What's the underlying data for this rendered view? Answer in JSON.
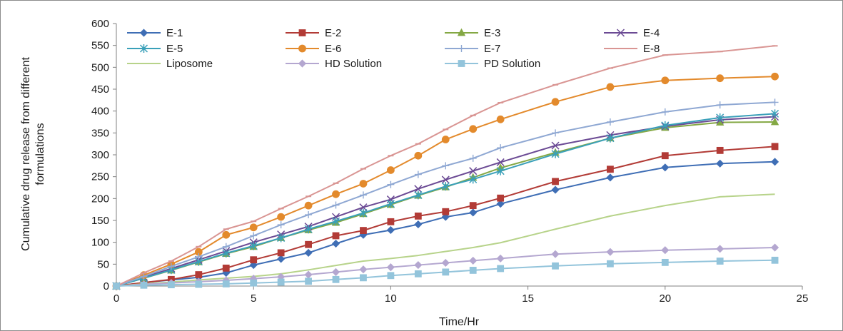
{
  "chart_data": {
    "type": "line",
    "title": "",
    "xlabel": "Time/Hr",
    "ylabel_lines": [
      "Cumulative drug release from different",
      "formulations"
    ],
    "xlim": [
      0,
      25
    ],
    "ylim": [
      0,
      600
    ],
    "xticks": [
      0,
      5,
      10,
      15,
      20,
      25
    ],
    "yticks": [
      0,
      50,
      100,
      150,
      200,
      250,
      300,
      350,
      400,
      450,
      500,
      550,
      600
    ],
    "grid": false,
    "legend_position": "top",
    "x": [
      0,
      1,
      2,
      3,
      4,
      5,
      6,
      7,
      8,
      9,
      10,
      11,
      12,
      13,
      14,
      16,
      18,
      20,
      22,
      24
    ],
    "series": [
      {
        "name": "E-1",
        "color": "#3f6eb5",
        "marker": "diamond",
        "values": [
          0,
          8,
          14,
          20,
          30,
          48,
          62,
          76,
          97,
          117,
          128,
          141,
          158,
          168,
          188,
          220,
          248,
          271,
          280,
          284
        ]
      },
      {
        "name": "E-2",
        "color": "#b23b36",
        "marker": "square",
        "values": [
          0,
          8,
          15,
          26,
          41,
          60,
          76,
          95,
          115,
          127,
          147,
          160,
          170,
          184,
          201,
          239,
          267,
          298,
          310,
          319
        ]
      },
      {
        "name": "E-3",
        "color": "#84a844",
        "marker": "triangle",
        "values": [
          0,
          18,
          36,
          55,
          74,
          90,
          110,
          128,
          145,
          165,
          186,
          207,
          226,
          248,
          270,
          305,
          338,
          362,
          374,
          375
        ]
      },
      {
        "name": "E-4",
        "color": "#6b4a94",
        "marker": "x",
        "values": [
          0,
          20,
          40,
          60,
          80,
          100,
          118,
          136,
          158,
          180,
          198,
          222,
          243,
          263,
          283,
          321,
          345,
          365,
          380,
          387
        ]
      },
      {
        "name": "E-5",
        "color": "#3aa0b9",
        "marker": "star",
        "values": [
          0,
          18,
          37,
          56,
          75,
          92,
          110,
          130,
          148,
          167,
          188,
          208,
          228,
          244,
          263,
          302,
          338,
          367,
          385,
          394
        ]
      },
      {
        "name": "E-6",
        "color": "#e38a2c",
        "marker": "circle",
        "values": [
          0,
          25,
          50,
          78,
          117,
          134,
          158,
          184,
          210,
          234,
          265,
          298,
          335,
          359,
          381,
          421,
          455,
          470,
          475,
          479
        ]
      },
      {
        "name": "E-7",
        "color": "#8fa8d3",
        "marker": "plus",
        "values": [
          0,
          22,
          45,
          67,
          90,
          115,
          140,
          163,
          185,
          208,
          232,
          255,
          275,
          292,
          316,
          350,
          375,
          398,
          414,
          420
        ]
      },
      {
        "name": "E-8",
        "color": "#d99593",
        "marker": "dash",
        "values": [
          0,
          30,
          57,
          90,
          130,
          148,
          177,
          205,
          235,
          268,
          298,
          325,
          358,
          390,
          419,
          460,
          498,
          528,
          536,
          549
        ]
      },
      {
        "name": "Liposome",
        "color": "#b7d38a",
        "marker": "none",
        "values": [
          0,
          5,
          9,
          14,
          18,
          22,
          28,
          37,
          47,
          57,
          63,
          70,
          79,
          88,
          99,
          130,
          160,
          184,
          204,
          210
        ]
      },
      {
        "name": "HD Solution",
        "color": "#b4a7d0",
        "marker": "diamond",
        "values": [
          0,
          4,
          7,
          10,
          13,
          17,
          21,
          26,
          32,
          38,
          43,
          48,
          53,
          58,
          63,
          73,
          78,
          82,
          85,
          88
        ]
      },
      {
        "name": "PD Solution",
        "color": "#93c4db",
        "marker": "square",
        "values": [
          0,
          2,
          3,
          4,
          5,
          7,
          9,
          11,
          15,
          19,
          24,
          28,
          32,
          36,
          40,
          46,
          51,
          54,
          57,
          59
        ]
      }
    ]
  }
}
